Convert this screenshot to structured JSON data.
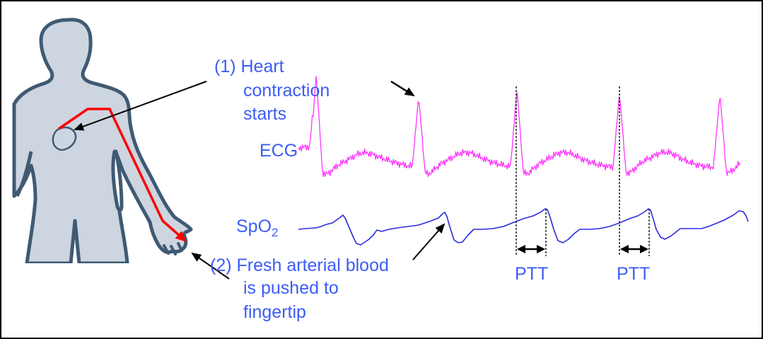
{
  "figure": {
    "title": "Pulse Transit Time (PTT) measurement diagram",
    "colors": {
      "text": "#3d5cf5",
      "ecg": "#ff33ff",
      "spo2": "#2b2bdd",
      "body_fill": "#cdd5e0",
      "body_outline": "#3f5a73",
      "pathway": "#ff0000",
      "arrows": "#000000"
    }
  },
  "annotations": {
    "step1": {
      "line1": "(1) Heart",
      "line2": "contraction",
      "line3": "starts"
    },
    "step2": {
      "line1": "(2) Fresh arterial blood",
      "line2": "is pushed to",
      "line3": "fingertip"
    }
  },
  "signals": {
    "ecg_label": "ECG",
    "spo2_label_main": "SpO",
    "spo2_label_sub": "2",
    "ptt_labels": [
      "PTT",
      "PTT"
    ]
  },
  "icons": {
    "body": "human-silhouette-icon",
    "heart": "heart-outline-icon"
  }
}
